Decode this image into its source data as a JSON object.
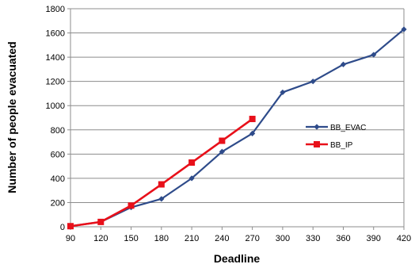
{
  "chart_data": {
    "type": "line",
    "title": "",
    "xlabel": "Deadline",
    "ylabel": "Number of people evacuated",
    "x": [
      90,
      120,
      150,
      180,
      210,
      240,
      270,
      300,
      330,
      360,
      390,
      420
    ],
    "xlim": [
      90,
      420
    ],
    "ylim": [
      0,
      1800
    ],
    "yticks": [
      0,
      200,
      400,
      600,
      800,
      1000,
      1200,
      1400,
      1600,
      1800
    ],
    "grid": true,
    "legend_position": "right",
    "series": [
      {
        "name": "BB_EVAC",
        "color": "#2e4b8a",
        "marker": "diamond",
        "x": [
          90,
          120,
          150,
          180,
          210,
          240,
          270,
          300,
          330,
          360,
          390,
          420
        ],
        "values": [
          5,
          40,
          160,
          230,
          400,
          620,
          770,
          1110,
          1200,
          1340,
          1420,
          1630
        ]
      },
      {
        "name": "BB_IP",
        "color": "#e8101a",
        "marker": "square",
        "x": [
          90,
          120,
          150,
          180,
          210,
          240,
          270
        ],
        "values": [
          5,
          40,
          175,
          350,
          530,
          710,
          890
        ]
      }
    ]
  }
}
